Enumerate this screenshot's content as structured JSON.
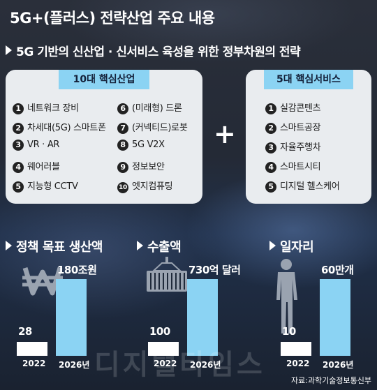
{
  "title": "5G+(플러스) 전략산업 주요 내용",
  "subtitle": "5G 기반의 신산업 · 신서비스 육성을 위한 정부차원의 전략",
  "core_industries": {
    "header": "10대 핵심산업",
    "items": [
      {
        "num": "1",
        "label": "네트워크 장비"
      },
      {
        "num": "2",
        "label": "차세대(5G) 스마트폰"
      },
      {
        "num": "3",
        "label": "VR · AR"
      },
      {
        "num": "4",
        "label": "웨어러블"
      },
      {
        "num": "5",
        "label": "지능형 CCTV"
      },
      {
        "num": "6",
        "label": "(미래형) 드론"
      },
      {
        "num": "7",
        "label": "(커넥티드)로봇"
      },
      {
        "num": "8",
        "label": "5G V2X"
      },
      {
        "num": "9",
        "label": "정보보안"
      },
      {
        "num": "10",
        "label": "엣지컴퓨팅"
      }
    ]
  },
  "plus_sign": "+",
  "core_services": {
    "header": "5대 핵심서비스",
    "items": [
      {
        "num": "1",
        "label": "실감콘텐츠"
      },
      {
        "num": "2",
        "label": "스마트공장"
      },
      {
        "num": "3",
        "label": "자율주행차"
      },
      {
        "num": "4",
        "label": "스마트시티"
      },
      {
        "num": "5",
        "label": "디지털 헬스케어"
      }
    ]
  },
  "chart_data": [
    {
      "type": "bar",
      "title": "정책 목표 생산액",
      "icon": "won-icon",
      "categories": [
        "2022",
        "2026년"
      ],
      "values": [
        28,
        180
      ],
      "labels": [
        "28",
        "180조원"
      ]
    },
    {
      "type": "bar",
      "title": "수출액",
      "icon": "container-icon",
      "categories": [
        "2022",
        "2026년"
      ],
      "values": [
        100,
        730
      ],
      "labels": [
        "100",
        "730억 달러"
      ]
    },
    {
      "type": "bar",
      "title": "일자리",
      "icon": "person-icon",
      "categories": [
        "2022",
        "2026년"
      ],
      "values": [
        10,
        60
      ],
      "labels": [
        "10",
        "60만개"
      ]
    }
  ],
  "colors": {
    "accent": "#8bd3f3",
    "panel": "#e9ecef",
    "bar_base": "#ffffff"
  },
  "watermark": "디지털타임스",
  "source": "자료:과학기술정보통신부"
}
